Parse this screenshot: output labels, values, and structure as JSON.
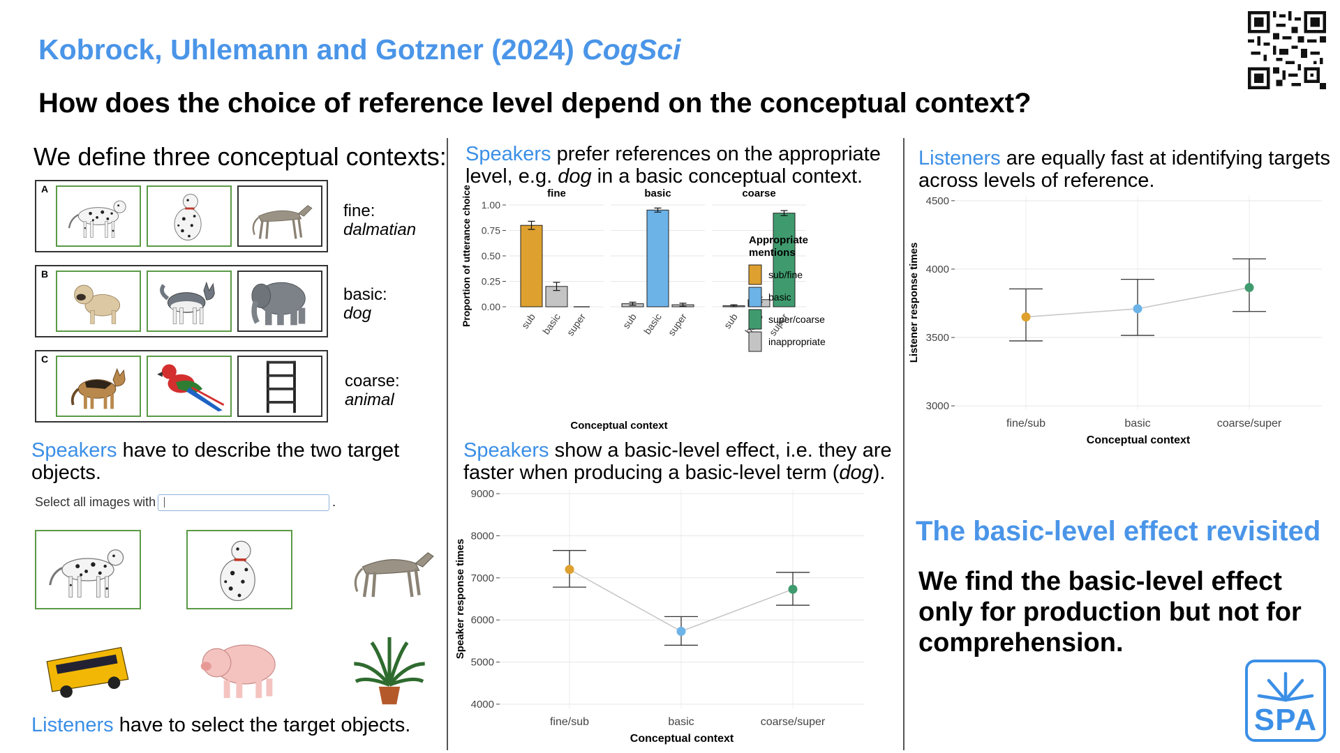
{
  "header": {
    "authors": "Kobrock, Uhlemann and Gotzner (2024)",
    "venue": "CogSci",
    "question": "How does the choice of reference level depend on the conceptual context?"
  },
  "left": {
    "contexts_heading": "We define three conceptual contexts:",
    "contexts": [
      {
        "letter": "A",
        "level": "fine:",
        "term": "dalmatian",
        "images": [
          "dalmatian-standing",
          "dalmatian-sitting",
          "greyhound"
        ]
      },
      {
        "letter": "B",
        "level": "basic:",
        "term": "dog",
        "images": [
          "pug",
          "husky",
          "elephant"
        ]
      },
      {
        "letter": "C",
        "level": "coarse:",
        "term": "animal",
        "images": [
          "german-shepherd",
          "parrot",
          "shelf"
        ]
      }
    ],
    "speakers_word": "Speakers",
    "speakers_text": " have to describe the two target objects.",
    "search_label": "Select all images with",
    "search_trailing": ".",
    "listeners_word": "Listeners",
    "listeners_text": " have to select the target objects.",
    "grid_images": [
      "dalmatian-standing",
      "dalmatian-sitting",
      "greyhound",
      "school-bus",
      "pig",
      "potted-palm"
    ]
  },
  "middle": {
    "top_word": "Speakers",
    "top_text_a": " prefer references on the appropriate level, e.g. ",
    "top_term": "dog",
    "top_text_b": " in a basic conceptual context.",
    "bottom_word": "Speakers",
    "bottom_text_a": " show a basic-level effect, i.e. they are faster when producing a basic-level term (",
    "bottom_term": "dog",
    "bottom_text_b": ")."
  },
  "right": {
    "top_word": "Listeners",
    "top_text": " are equally fast at identifying targets across levels of reference.",
    "conclusion_title": "The basic-level effect revisited",
    "conclusion_body": "We find the basic-level effect only for production but not for comprehension.",
    "logo_text": "SPA"
  },
  "colors": {
    "accent": "#4a95e8",
    "fine": "#dea02f",
    "basic": "#6cb3e8",
    "coarse": "#3f9b6e",
    "inappropriate": "#c4c4c4",
    "target_border": "#5a9a45"
  },
  "chart_data": [
    {
      "type": "bar",
      "facets": [
        "fine",
        "basic",
        "coarse"
      ],
      "categories": [
        "sub",
        "basic",
        "super"
      ],
      "series": [
        {
          "facet": "fine",
          "values": [
            0.8,
            0.2,
            0.0
          ],
          "errors": [
            0.04,
            0.04,
            0.0
          ],
          "fills": [
            "sub/fine",
            "inappropriate",
            "inappropriate"
          ]
        },
        {
          "facet": "basic",
          "values": [
            0.03,
            0.95,
            0.02
          ],
          "errors": [
            0.015,
            0.02,
            0.015
          ],
          "fills": [
            "inappropriate",
            "basic",
            "inappropriate"
          ]
        },
        {
          "facet": "coarse",
          "values": [
            0.01,
            0.07,
            0.92
          ],
          "errors": [
            0.01,
            0.025,
            0.025
          ],
          "fills": [
            "inappropriate",
            "inappropriate",
            "super/coarse"
          ]
        }
      ],
      "xlabel": "Conceptual context",
      "ylabel": "Proportion of utterance choice",
      "ylim": [
        0,
        1.0
      ],
      "yticks": [
        "0.00",
        "0.25",
        "0.50",
        "0.75",
        "1.00"
      ],
      "legend_title": "Appropriate mentions",
      "legend": [
        {
          "label": "sub/fine",
          "color": "#dea02f"
        },
        {
          "label": "basic",
          "color": "#6cb3e8"
        },
        {
          "label": "super/coarse",
          "color": "#3f9b6e"
        },
        {
          "label": "inappropriate",
          "color": "#c4c4c4"
        }
      ],
      "legend_position": "right",
      "grid": true
    },
    {
      "type": "line",
      "categories": [
        "fine/sub",
        "basic",
        "coarse/super"
      ],
      "values": [
        7200,
        5730,
        6730
      ],
      "ci_low": [
        6780,
        5400,
        6350
      ],
      "ci_high": [
        7650,
        6080,
        7130
      ],
      "point_colors": [
        "#dea02f",
        "#6cb3e8",
        "#3f9b6e"
      ],
      "xlabel": "Conceptual context",
      "ylabel": "Speaker response times",
      "ylim": [
        3900,
        9100
      ],
      "yticks": [
        4000,
        5000,
        6000,
        7000,
        8000,
        9000
      ],
      "grid": true
    },
    {
      "type": "line",
      "categories": [
        "fine/sub",
        "basic",
        "coarse/super"
      ],
      "values": [
        3650,
        3710,
        3865
      ],
      "ci_low": [
        3475,
        3515,
        3690
      ],
      "ci_high": [
        3855,
        3925,
        4075
      ],
      "point_colors": [
        "#dea02f",
        "#6cb3e8",
        "#3f9b6e"
      ],
      "xlabel": "Conceptual context",
      "ylabel": "Listener response times",
      "ylim": [
        2970,
        4540
      ],
      "yticks": [
        3000,
        3500,
        4000,
        4500
      ],
      "grid": true
    }
  ]
}
